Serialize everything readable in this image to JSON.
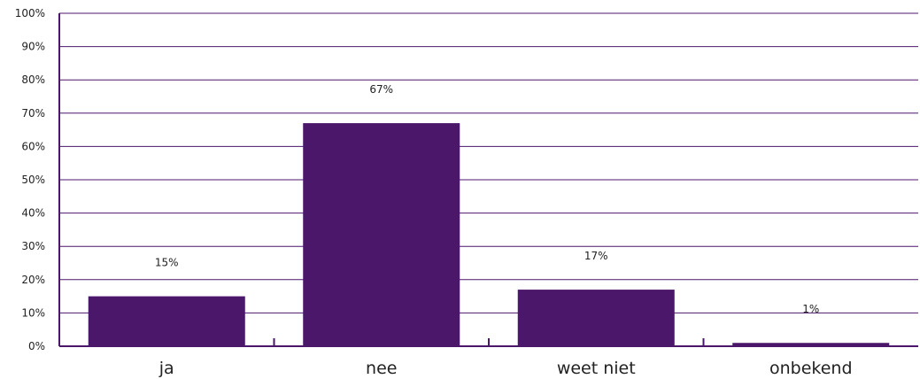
{
  "chart_data": {
    "type": "bar",
    "categories": [
      "ja",
      "nee",
      "weet niet",
      "onbekend"
    ],
    "values": [
      15,
      67,
      17,
      1
    ],
    "data_labels": [
      "15%",
      "67%",
      "17%",
      "1%"
    ],
    "title": "",
    "xlabel": "",
    "ylabel": "",
    "ylim": [
      0,
      100
    ],
    "yticks": [
      0,
      10,
      20,
      30,
      40,
      50,
      60,
      70,
      80,
      90,
      100
    ],
    "ytick_labels": [
      "0%",
      "10%",
      "20%",
      "30%",
      "40%",
      "50%",
      "60%",
      "70%",
      "80%",
      "90%",
      "100%"
    ],
    "grid": true,
    "colors": {
      "bar": "#4B176B",
      "grid": "#4B176B",
      "axis": "#4B176B"
    }
  }
}
